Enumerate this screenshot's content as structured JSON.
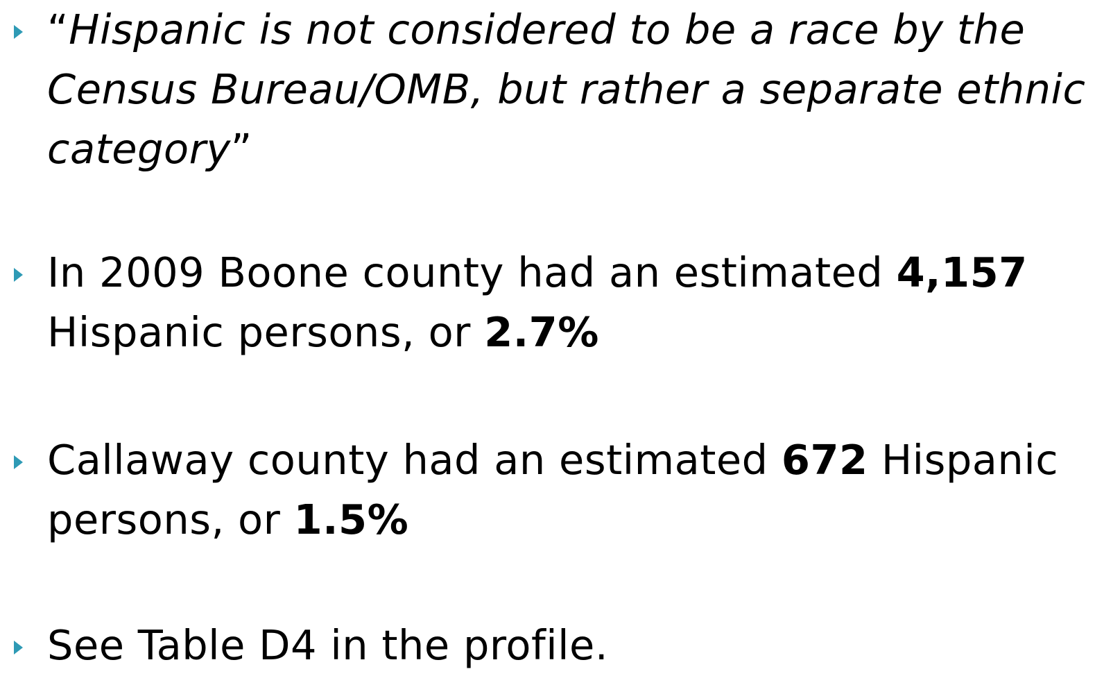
{
  "bullets": [
    {
      "parts": [
        "“",
        "Hispanic is not considered to be a race by the Census Bureau/OMB, but rather a separate ethnic category",
        "”"
      ]
    },
    {
      "parts": [
        "In 2009 Boone county had an estimated ",
        "4,157",
        " Hispanic persons, or ",
        "2.7%"
      ]
    },
    {
      "parts": [
        "Callaway county had an estimated ",
        "672",
        " Hispanic persons, or ",
        "1.5%"
      ]
    },
    {
      "parts": [
        "See Table D4 in the profile."
      ]
    }
  ]
}
